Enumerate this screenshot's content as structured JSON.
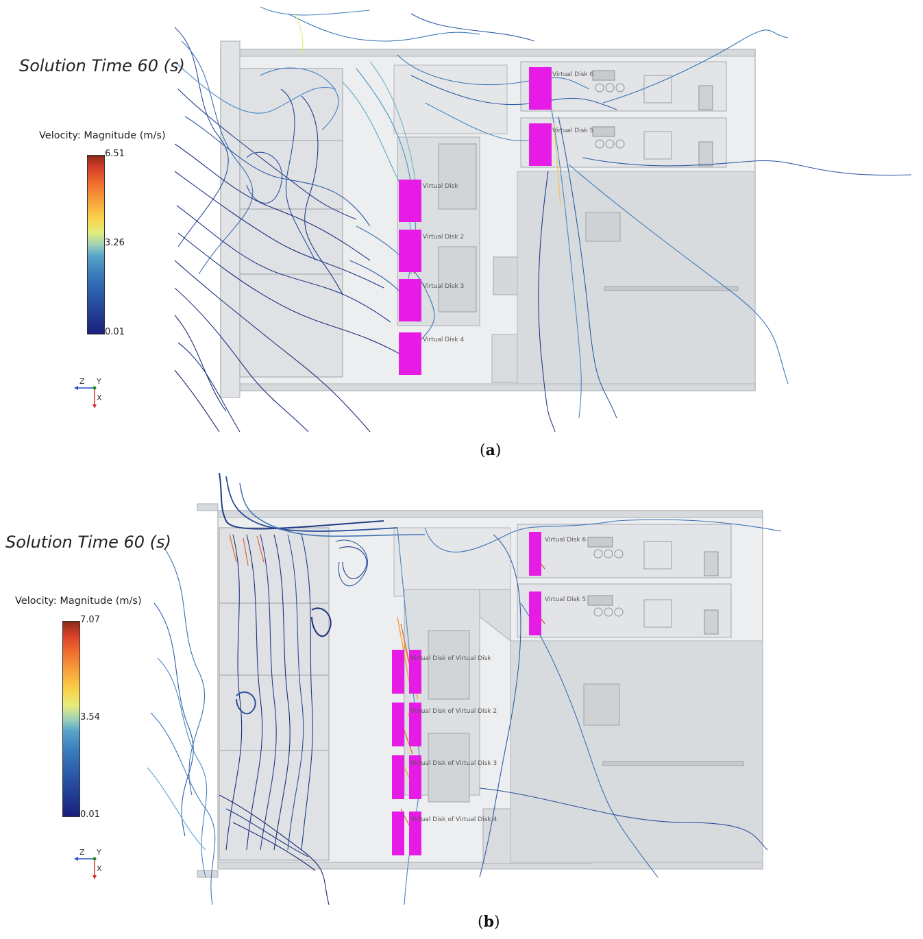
{
  "panels": [
    {
      "id": "a",
      "solution_time": "Solution Time 60 (s)",
      "colorbar_title": "Velocity: Magnitude (m/s)",
      "colorbar_max": "6.51",
      "colorbar_mid": "3.26",
      "colorbar_min": "0.01",
      "caption_open": "(",
      "caption_letter": "a",
      "caption_close": ")",
      "axes": {
        "z": "Z",
        "y": "Y",
        "x": "X"
      },
      "disks": [
        "Virtual Disk",
        "Virtual Disk 2",
        "Virtual Disk 3",
        "Virtual Disk 4",
        "Virtual Disk 5",
        "Virtual Disk 6"
      ]
    },
    {
      "id": "b",
      "solution_time": "Solution Time 60 (s)",
      "colorbar_title": "Velocity: Magnitude (m/s)",
      "colorbar_max": "7.07",
      "colorbar_mid": "3.54",
      "colorbar_min": "0.01",
      "caption_open": "(",
      "caption_letter": "b",
      "caption_close": ")",
      "axes": {
        "z": "Z",
        "y": "Y",
        "x": "X"
      },
      "disks": [
        "Virtual Disk of Virtual Disk",
        "Virtual Disk of Virtual Disk 2",
        "Virtual Disk of Virtual Disk 3",
        "Virtual Disk of Virtual Disk 4",
        "Virtual Disk 5",
        "Virtual Disk 6"
      ]
    }
  ],
  "colors": {
    "virtual_disk": "#e61ce6",
    "chassis": "#e3e5e8",
    "streamline_dark": "#1b2f7a",
    "streamline_mid": "#3a78b8",
    "streamline_hot": "#f0a23a"
  }
}
